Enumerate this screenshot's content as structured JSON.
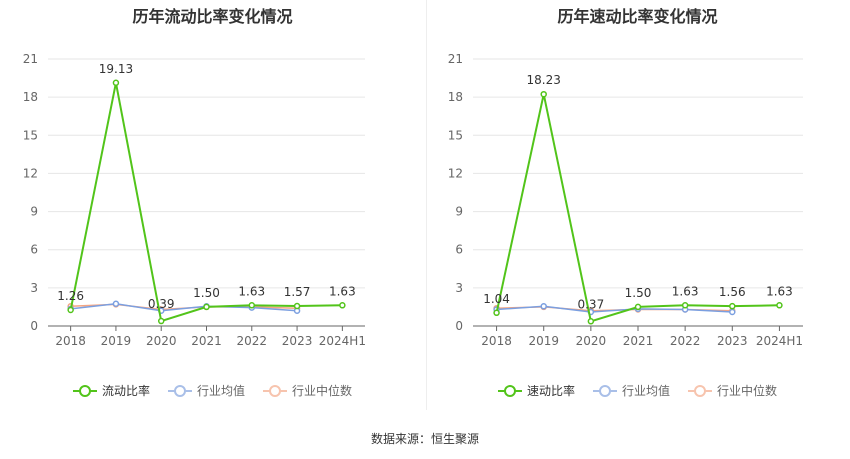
{
  "chart_data": [
    {
      "type": "line",
      "title": "历年流动比率变化情况",
      "categories": [
        "2018",
        "2019",
        "2020",
        "2021",
        "2022",
        "2023",
        "2024H1"
      ],
      "ylim": [
        0,
        21
      ],
      "yticks": [
        "0",
        "3",
        "6",
        "9",
        "12",
        "15",
        "18",
        "21"
      ],
      "grid": true,
      "legend_position": "bottom",
      "series": [
        {
          "name": "流动比率",
          "color": "#52c41a",
          "values": [
            1.26,
            19.13,
            0.39,
            1.5,
            1.63,
            1.57,
            1.63
          ],
          "labels": [
            "1.26",
            "19.13",
            "0.39",
            "1.50",
            "1.63",
            "1.57",
            "1.63"
          ]
        },
        {
          "name": "行业均值",
          "color": "#7b9fe0",
          "values": [
            1.35,
            1.75,
            1.2,
            1.55,
            1.45,
            1.2,
            null
          ]
        },
        {
          "name": "行业中位数",
          "color": "#f4a582",
          "values": [
            1.55,
            1.7,
            1.3,
            1.5,
            1.5,
            1.4,
            null
          ]
        }
      ]
    },
    {
      "type": "line",
      "title": "历年速动比率变化情况",
      "categories": [
        "2018",
        "2019",
        "2020",
        "2021",
        "2022",
        "2023",
        "2024H1"
      ],
      "ylim": [
        0,
        21
      ],
      "yticks": [
        "0",
        "3",
        "6",
        "9",
        "12",
        "15",
        "18",
        "21"
      ],
      "grid": true,
      "legend_position": "bottom",
      "series": [
        {
          "name": "速动比率",
          "color": "#52c41a",
          "values": [
            1.04,
            18.23,
            0.37,
            1.5,
            1.63,
            1.56,
            1.63
          ],
          "labels": [
            "1.04",
            "18.23",
            "0.37",
            "1.50",
            "1.63",
            "1.56",
            "1.63"
          ]
        },
        {
          "name": "行业均值",
          "color": "#7b9fe0",
          "values": [
            1.3,
            1.55,
            1.1,
            1.35,
            1.3,
            1.1,
            null
          ]
        },
        {
          "name": "行业中位数",
          "color": "#f4a582",
          "values": [
            1.4,
            1.5,
            1.2,
            1.3,
            1.3,
            1.2,
            null
          ]
        }
      ]
    }
  ],
  "source": "数据来源：恒生聚源"
}
